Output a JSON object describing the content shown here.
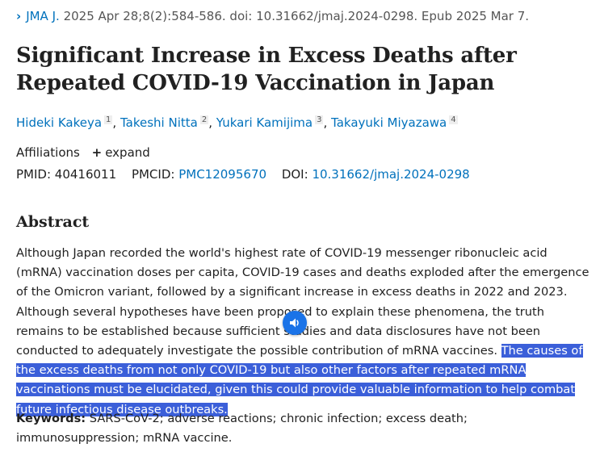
{
  "citation": {
    "journal": "JMA J.",
    "details": "2025 Apr 28;8(2):584-586. doi: 10.31662/jmaj.2024-0298. Epub 2025 Mar 7."
  },
  "title": "Significant Increase in Excess Deaths after Repeated COVID-19 Vaccination in Japan",
  "authors": [
    {
      "name": "Hideki Kakeya",
      "aff": "1"
    },
    {
      "name": "Takeshi Nitta",
      "aff": "2"
    },
    {
      "name": "Yukari Kamijima",
      "aff": "3"
    },
    {
      "name": "Takayuki Miyazawa",
      "aff": "4"
    }
  ],
  "affiliations": {
    "label": "Affiliations",
    "expand": "expand"
  },
  "ids": {
    "pmid_label": "PMID:",
    "pmid": "40416011",
    "pmcid_label": "PMCID:",
    "pmcid": "PMC12095670",
    "doi_label": "DOI:",
    "doi": "10.31662/jmaj.2024-0298"
  },
  "abstract": {
    "heading": "Abstract",
    "text_plain": "Although Japan recorded the world's highest rate of COVID-19 messenger ribonucleic acid (mRNA) vaccination doses per capita, COVID-19 cases and deaths exploded after the emergence of the Omicron variant, followed by a significant increase in excess deaths in 2022 and 2023. Although several hypotheses have been proposed to explain these phenomena, the truth remains to be established because sufficient studies and data disclosures have not been conducted to adequately investigate the possible contribution of mRNA vaccines. ",
    "text_highlighted": "The causes of the excess deaths from not only COVID-19 but also other factors after repeated mRNA vaccinations must be elucidated, given this could provide valuable information to help combat future infectious disease outbreaks."
  },
  "keywords": {
    "label": "Keywords:",
    "text": " SARS-CoV-2; adverse reactions; chronic infection; excess death; immunosuppression; mRNA vaccine."
  },
  "icons": {
    "citation": "chevron-right-icon",
    "expand": "plus-icon",
    "speaker": "speaker-icon"
  },
  "colors": {
    "link": "#0071bc",
    "highlight": "#3b5fd9",
    "speaker": "#1a73e8"
  }
}
